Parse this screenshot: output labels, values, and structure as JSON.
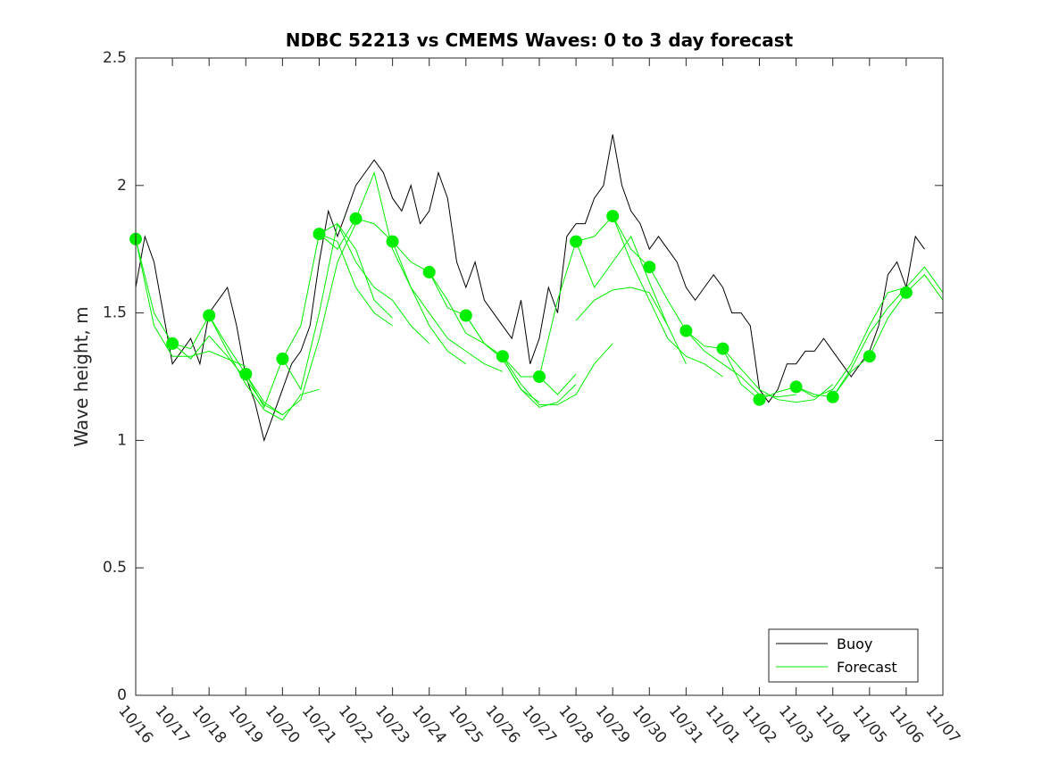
{
  "chart_data": {
    "type": "line",
    "title": "NDBC 52213 vs CMEMS Waves: 0 to 3 day forecast",
    "xlabel": "",
    "ylabel": "Wave height, m",
    "xlim": [
      0,
      22
    ],
    "ylim": [
      0,
      2.5
    ],
    "x_ticks": [
      0,
      1,
      2,
      3,
      4,
      5,
      6,
      7,
      8,
      9,
      10,
      11,
      12,
      13,
      14,
      15,
      16,
      17,
      18,
      19,
      20,
      21,
      22
    ],
    "x_tick_labels": [
      "10/16",
      "10/17",
      "10/18",
      "10/19",
      "10/20",
      "10/21",
      "10/22",
      "10/23",
      "10/24",
      "10/25",
      "10/26",
      "10/27",
      "10/28",
      "10/29",
      "10/30",
      "10/31",
      "11/01",
      "11/02",
      "11/03",
      "11/04",
      "11/05",
      "11/06",
      "11/07"
    ],
    "y_ticks": [
      0,
      0.5,
      1,
      1.5,
      2,
      2.5
    ],
    "y_tick_labels": [
      "0",
      "0.5",
      "1",
      "1.5",
      "2",
      "2.5"
    ],
    "grid": false,
    "legend_position": "bottom-right",
    "colors": {
      "buoy": "#000000",
      "forecast": "#00ee00"
    },
    "series": [
      {
        "name": "Buoy",
        "role": "buoy",
        "x": [
          0,
          0.25,
          0.5,
          0.75,
          1.0,
          1.25,
          1.5,
          1.75,
          2.0,
          2.25,
          2.5,
          2.75,
          3.0,
          3.25,
          3.5,
          3.75,
          4.0,
          4.25,
          4.5,
          4.75,
          5.0,
          5.25,
          5.5,
          5.75,
          6.0,
          6.25,
          6.5,
          6.75,
          7.0,
          7.25,
          7.5,
          7.75,
          8.0,
          8.25,
          8.5,
          8.75,
          9.0,
          9.25,
          9.5,
          9.75,
          10.0,
          10.25,
          10.5,
          10.75,
          11.0,
          11.25,
          11.5,
          11.75,
          12.0,
          12.25,
          12.5,
          12.75,
          13.0,
          13.25,
          13.5,
          13.75,
          14.0,
          14.25,
          14.5,
          14.75,
          15.0,
          15.25,
          15.5,
          15.75,
          16.0,
          16.25,
          16.5,
          16.75,
          17.0,
          17.25,
          17.5,
          17.75,
          18.0,
          18.25,
          18.5,
          18.75,
          19.0,
          19.25,
          19.5,
          19.75,
          20.0,
          20.25,
          20.5,
          20.75,
          21.0,
          21.25,
          21.5
        ],
        "values": [
          1.6,
          1.8,
          1.7,
          1.5,
          1.3,
          1.35,
          1.4,
          1.3,
          1.5,
          1.55,
          1.6,
          1.45,
          1.25,
          1.15,
          1.0,
          1.1,
          1.2,
          1.3,
          1.35,
          1.45,
          1.7,
          1.9,
          1.8,
          1.9,
          2.0,
          2.05,
          2.1,
          2.05,
          1.95,
          1.9,
          2.0,
          1.85,
          1.9,
          2.05,
          1.95,
          1.7,
          1.6,
          1.7,
          1.55,
          1.5,
          1.45,
          1.4,
          1.55,
          1.3,
          1.4,
          1.6,
          1.5,
          1.8,
          1.85,
          1.85,
          1.95,
          2.0,
          2.2,
          2.0,
          1.9,
          1.85,
          1.75,
          1.8,
          1.75,
          1.7,
          1.6,
          1.55,
          1.6,
          1.65,
          1.6,
          1.5,
          1.5,
          1.45,
          1.2,
          1.15,
          1.2,
          1.3,
          1.3,
          1.35,
          1.35,
          1.4,
          1.35,
          1.3,
          1.25,
          1.3,
          1.35,
          1.45,
          1.65,
          1.7,
          1.6,
          1.8,
          1.75
        ]
      },
      {
        "name": "Forecast",
        "role": "forecast",
        "x": [
          0,
          0.5,
          1.0,
          1.5,
          2.0,
          2.5,
          3.0,
          3.5,
          4.0,
          4.5,
          5.0,
          5.5,
          6.0,
          6.5,
          7.0,
          7.5,
          8.0,
          8.5,
          9.0,
          9.5,
          10.0,
          10.5,
          11.0,
          11.5,
          12.0,
          12.5,
          13.0,
          13.5,
          14.0,
          14.5,
          15.0,
          15.5,
          16.0,
          16.5,
          17.0,
          17.5,
          18.0,
          18.5,
          19.0,
          19.5,
          20.0,
          20.5,
          21.0,
          21.5,
          22.0
        ],
        "values": [
          1.79,
          1.5,
          1.38,
          1.36,
          1.49,
          1.37,
          1.26,
          1.13,
          1.32,
          1.45,
          1.81,
          1.75,
          1.87,
          1.85,
          1.78,
          1.7,
          1.66,
          1.52,
          1.49,
          1.38,
          1.33,
          1.25,
          1.25,
          1.55,
          1.78,
          1.8,
          1.88,
          1.75,
          1.68,
          1.55,
          1.43,
          1.37,
          1.36,
          1.22,
          1.16,
          1.19,
          1.21,
          1.18,
          1.17,
          1.27,
          1.33,
          1.48,
          1.58,
          1.65,
          1.55
        ]
      },
      {
        "name": "",
        "role": "forecast",
        "x": [
          0,
          0.5,
          1.0,
          1.5,
          2.0,
          2.5,
          3.0
        ],
        "values": [
          1.79,
          1.45,
          1.33,
          1.33,
          1.35,
          1.32,
          1.29
        ]
      },
      {
        "name": "",
        "role": "forecast",
        "x": [
          1.0,
          1.5,
          2.0,
          2.5,
          3.0,
          3.5,
          4.0
        ],
        "values": [
          1.38,
          1.32,
          1.41,
          1.33,
          1.24,
          1.14,
          1.1
        ]
      },
      {
        "name": "",
        "role": "forecast",
        "x": [
          2.0,
          2.5,
          3.0,
          3.5,
          4.0,
          4.5,
          5.0
        ],
        "values": [
          1.49,
          1.35,
          1.22,
          1.12,
          1.08,
          1.18,
          1.2
        ]
      },
      {
        "name": "",
        "role": "forecast",
        "x": [
          3.0,
          3.5,
          4.0,
          4.5,
          5.0,
          5.5,
          6.0
        ],
        "values": [
          1.26,
          1.15,
          1.1,
          1.16,
          1.4,
          1.7,
          1.85
        ]
      },
      {
        "name": "",
        "role": "forecast",
        "x": [
          4.0,
          4.5,
          5.0,
          5.5,
          6.0,
          6.5,
          7.0
        ],
        "values": [
          1.32,
          1.2,
          1.5,
          1.85,
          1.75,
          1.55,
          1.48
        ]
      },
      {
        "name": "",
        "role": "forecast",
        "x": [
          5.0,
          5.5,
          6.0,
          6.5,
          7.0
        ],
        "values": [
          1.81,
          1.78,
          1.6,
          1.5,
          1.45
        ]
      },
      {
        "name": "",
        "role": "forecast",
        "x": [
          5.0,
          5.5,
          6.0,
          6.5,
          7.0,
          7.5,
          8.0
        ],
        "values": [
          1.81,
          1.85,
          1.7,
          1.6,
          1.55,
          1.45,
          1.38
        ]
      },
      {
        "name": "",
        "role": "forecast",
        "x": [
          6.0,
          6.5,
          7.0,
          7.5,
          8.0,
          8.5,
          9.0
        ],
        "values": [
          1.87,
          2.05,
          1.75,
          1.6,
          1.45,
          1.35,
          1.3
        ]
      },
      {
        "name": "",
        "role": "forecast",
        "x": [
          7.0,
          7.5,
          8.0,
          8.5,
          9.0,
          9.5,
          10.0
        ],
        "values": [
          1.78,
          1.6,
          1.5,
          1.4,
          1.35,
          1.3,
          1.27
        ]
      },
      {
        "name": "",
        "role": "forecast",
        "x": [
          8.0,
          8.5,
          9.0,
          9.5,
          10.0,
          10.5,
          11.0
        ],
        "values": [
          1.66,
          1.55,
          1.42,
          1.38,
          1.32,
          1.2,
          1.15
        ]
      },
      {
        "name": "",
        "role": "forecast",
        "x": [
          9.0,
          9.5,
          10.0,
          10.5,
          11.0,
          11.5,
          12.0
        ],
        "values": [
          1.49,
          1.38,
          1.32,
          1.2,
          1.13,
          1.15,
          1.22
        ]
      },
      {
        "name": "",
        "role": "forecast",
        "x": [
          10.0,
          10.5,
          11.0,
          11.5,
          12.0,
          12.5,
          13.0
        ],
        "values": [
          1.33,
          1.22,
          1.14,
          1.14,
          1.18,
          1.3,
          1.38
        ]
      },
      {
        "name": "",
        "role": "forecast",
        "x": [
          11.0,
          11.5,
          12.0
        ],
        "values": [
          1.25,
          1.18,
          1.26
        ]
      },
      {
        "name": "",
        "role": "forecast",
        "x": [
          12.0,
          12.5,
          13.0,
          13.5,
          14.0,
          14.5,
          15.0
        ],
        "values": [
          1.78,
          1.6,
          1.7,
          1.8,
          1.62,
          1.45,
          1.3
        ]
      },
      {
        "name": "",
        "role": "forecast",
        "x": [
          13.0,
          13.5,
          14.0,
          14.5,
          15.0,
          15.5,
          16.0
        ],
        "values": [
          1.88,
          1.7,
          1.55,
          1.4,
          1.33,
          1.3,
          1.25
        ]
      },
      {
        "name": "",
        "role": "forecast",
        "x": [
          12.0,
          12.5,
          13.0,
          13.5,
          14.0,
          14.5
        ],
        "values": [
          1.47,
          1.55,
          1.59,
          1.6,
          1.58,
          1.45
        ]
      },
      {
        "name": "",
        "role": "forecast",
        "x": [
          15.0,
          15.5,
          16.0,
          16.5,
          17.0,
          17.5,
          18.0
        ],
        "values": [
          1.43,
          1.35,
          1.3,
          1.25,
          1.18,
          1.17,
          1.18
        ]
      },
      {
        "name": "",
        "role": "forecast",
        "x": [
          16.0,
          16.5,
          17.0,
          17.5,
          18.0,
          18.5,
          19.0
        ],
        "values": [
          1.36,
          1.28,
          1.2,
          1.16,
          1.15,
          1.16,
          1.22
        ]
      },
      {
        "name": "",
        "role": "forecast",
        "x": [
          18.0,
          18.5,
          19.0,
          19.5,
          20.0,
          20.5,
          21.0
        ],
        "values": [
          1.21,
          1.17,
          1.2,
          1.3,
          1.45,
          1.58,
          1.6
        ]
      },
      {
        "name": "",
        "role": "forecast",
        "x": [
          19.0,
          19.5,
          20.0,
          20.5,
          21.0,
          21.5,
          22.0
        ],
        "values": [
          1.17,
          1.28,
          1.42,
          1.52,
          1.6,
          1.68,
          1.58
        ]
      }
    ],
    "markers": {
      "x": [
        0,
        1,
        2,
        3,
        4,
        5,
        6,
        7,
        8,
        9,
        10,
        11,
        12,
        13,
        14,
        15,
        16,
        17,
        18,
        19,
        20,
        21
      ],
      "values": [
        1.79,
        1.38,
        1.49,
        1.26,
        1.32,
        1.81,
        1.87,
        1.78,
        1.66,
        1.49,
        1.33,
        1.25,
        1.78,
        1.88,
        1.68,
        1.43,
        1.36,
        1.16,
        1.21,
        1.17,
        1.33,
        1.58
      ]
    }
  }
}
